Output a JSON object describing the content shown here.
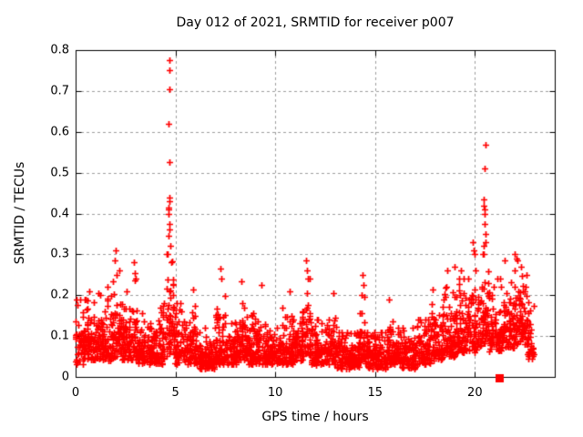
{
  "chart_data": {
    "type": "scatter",
    "title": "Day 012 of 2021, SRMTID for receiver p007",
    "xlabel": "GPS time / hours",
    "ylabel": "SRMTID / TECUs",
    "xlim": [
      0,
      24
    ],
    "ylim": [
      0,
      0.8
    ],
    "xticks": [
      {
        "v": 0,
        "label": "0"
      },
      {
        "v": 5,
        "label": "5"
      },
      {
        "v": 10,
        "label": "10"
      },
      {
        "v": 15,
        "label": "15"
      },
      {
        "v": 20,
        "label": "20"
      }
    ],
    "yticks": [
      {
        "v": 0,
        "label": "0"
      },
      {
        "v": 0.1,
        "label": "0.1"
      },
      {
        "v": 0.2,
        "label": "0.2"
      },
      {
        "v": 0.3,
        "label": "0.3"
      },
      {
        "v": 0.4,
        "label": "0.4"
      },
      {
        "v": 0.5,
        "label": "0.5"
      },
      {
        "v": 0.6,
        "label": "0.6"
      },
      {
        "v": 0.7,
        "label": "0.7"
      },
      {
        "v": 0.8,
        "label": "0.8"
      }
    ],
    "grid": true,
    "legend": false,
    "marker": "plus",
    "marker_color": "#ff0000",
    "grid_color": "#9e9e9e",
    "axis_color": "#000000",
    "background": "#ffffff",
    "seed": 20211,
    "density_bins": [
      [
        0.0,
        0.5,
        60,
        0.03,
        0.1,
        0.19
      ],
      [
        0.5,
        1.0,
        60,
        0.04,
        0.1,
        0.21
      ],
      [
        1.0,
        1.5,
        60,
        0.04,
        0.09,
        0.2
      ],
      [
        1.5,
        2.0,
        60,
        0.04,
        0.1,
        0.24
      ],
      [
        2.0,
        2.3,
        36,
        0.05,
        0.11,
        0.26
      ],
      [
        2.3,
        2.8,
        60,
        0.04,
        0.09,
        0.2
      ],
      [
        2.8,
        3.1,
        36,
        0.04,
        0.1,
        0.24
      ],
      [
        3.1,
        4.0,
        108,
        0.03,
        0.08,
        0.16
      ],
      [
        4.0,
        4.5,
        60,
        0.03,
        0.09,
        0.18
      ],
      [
        4.5,
        4.9,
        48,
        0.05,
        0.14,
        0.3
      ],
      [
        4.9,
        5.4,
        60,
        0.03,
        0.09,
        0.18
      ],
      [
        5.4,
        6.0,
        72,
        0.03,
        0.08,
        0.19
      ],
      [
        6.0,
        7.0,
        120,
        0.02,
        0.06,
        0.12
      ],
      [
        7.0,
        7.5,
        60,
        0.03,
        0.09,
        0.22
      ],
      [
        7.5,
        8.1,
        72,
        0.03,
        0.07,
        0.14
      ],
      [
        8.1,
        8.6,
        60,
        0.04,
        0.09,
        0.2
      ],
      [
        8.6,
        9.5,
        108,
        0.03,
        0.08,
        0.18
      ],
      [
        9.5,
        10.3,
        96,
        0.03,
        0.07,
        0.13
      ],
      [
        10.3,
        11.0,
        84,
        0.03,
        0.08,
        0.17
      ],
      [
        11.0,
        11.5,
        60,
        0.04,
        0.09,
        0.16
      ],
      [
        11.5,
        11.8,
        36,
        0.05,
        0.11,
        0.24
      ],
      [
        11.8,
        12.7,
        108,
        0.03,
        0.07,
        0.14
      ],
      [
        12.7,
        13.1,
        48,
        0.03,
        0.08,
        0.17
      ],
      [
        13.1,
        14.2,
        132,
        0.02,
        0.06,
        0.11
      ],
      [
        14.2,
        14.6,
        48,
        0.03,
        0.08,
        0.2
      ],
      [
        14.6,
        15.6,
        120,
        0.02,
        0.06,
        0.11
      ],
      [
        15.6,
        16.1,
        60,
        0.03,
        0.07,
        0.15
      ],
      [
        16.1,
        17.1,
        120,
        0.02,
        0.06,
        0.12
      ],
      [
        17.1,
        17.8,
        84,
        0.03,
        0.08,
        0.14
      ],
      [
        17.8,
        18.4,
        72,
        0.04,
        0.1,
        0.18
      ],
      [
        18.4,
        19.1,
        84,
        0.05,
        0.12,
        0.22
      ],
      [
        19.1,
        19.8,
        84,
        0.06,
        0.13,
        0.24
      ],
      [
        19.8,
        20.3,
        60,
        0.06,
        0.13,
        0.26
      ],
      [
        20.3,
        20.7,
        48,
        0.08,
        0.16,
        0.3
      ],
      [
        20.7,
        21.3,
        72,
        0.06,
        0.12,
        0.24
      ],
      [
        21.3,
        22.0,
        84,
        0.07,
        0.14,
        0.26
      ],
      [
        22.0,
        22.5,
        60,
        0.08,
        0.15,
        0.28
      ],
      [
        22.5,
        22.95,
        54,
        0.04,
        0.1,
        0.22
      ]
    ],
    "outliers": [
      [
        1.15,
        0.205
      ],
      [
        1.6,
        0.22
      ],
      [
        1.95,
        0.285
      ],
      [
        2.0,
        0.31
      ],
      [
        2.05,
        0.25
      ],
      [
        2.55,
        0.21
      ],
      [
        2.9,
        0.28
      ],
      [
        2.95,
        0.255
      ],
      [
        4.62,
        0.3
      ],
      [
        4.64,
        0.345
      ],
      [
        4.65,
        0.4
      ],
      [
        4.66,
        0.41
      ],
      [
        4.67,
        0.415
      ],
      [
        4.68,
        0.43
      ],
      [
        4.7,
        0.44
      ],
      [
        4.7,
        0.375
      ],
      [
        4.71,
        0.36
      ],
      [
        4.69,
        0.525
      ],
      [
        4.66,
        0.62
      ],
      [
        4.7,
        0.705
      ],
      [
        4.7,
        0.75
      ],
      [
        4.69,
        0.775
      ],
      [
        4.75,
        0.32
      ],
      [
        4.78,
        0.28
      ],
      [
        5.9,
        0.215
      ],
      [
        7.25,
        0.265
      ],
      [
        7.3,
        0.24
      ],
      [
        8.3,
        0.235
      ],
      [
        9.3,
        0.225
      ],
      [
        10.7,
        0.21
      ],
      [
        11.55,
        0.285
      ],
      [
        11.6,
        0.26
      ],
      [
        11.62,
        0.24
      ],
      [
        12.9,
        0.205
      ],
      [
        14.35,
        0.25
      ],
      [
        14.4,
        0.225
      ],
      [
        15.7,
        0.19
      ],
      [
        17.9,
        0.215
      ],
      [
        18.6,
        0.26
      ],
      [
        19.0,
        0.27
      ],
      [
        19.3,
        0.26
      ],
      [
        19.9,
        0.33
      ],
      [
        19.92,
        0.31
      ],
      [
        20.0,
        0.3
      ],
      [
        20.4,
        0.3
      ],
      [
        20.42,
        0.32
      ],
      [
        20.45,
        0.435
      ],
      [
        20.46,
        0.42
      ],
      [
        20.47,
        0.41
      ],
      [
        20.5,
        0.4
      ],
      [
        20.5,
        0.375
      ],
      [
        20.52,
        0.35
      ],
      [
        20.55,
        0.33
      ],
      [
        20.5,
        0.51
      ],
      [
        20.52,
        0.568
      ],
      [
        21.5,
        0.285
      ],
      [
        22.0,
        0.3
      ],
      [
        22.1,
        0.29
      ],
      [
        22.15,
        0.285
      ],
      [
        22.3,
        0.27
      ],
      [
        22.6,
        0.25
      ]
    ],
    "gap_marker": {
      "x": 21.2,
      "y": 0,
      "shape": "filled-square",
      "color": "#ff0000"
    }
  }
}
